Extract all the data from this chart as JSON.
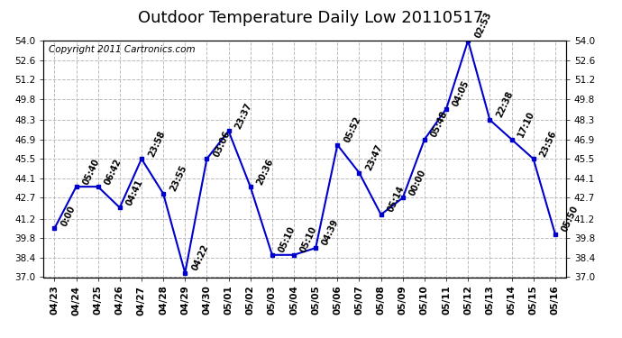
{
  "title": "Outdoor Temperature Daily Low 20110517",
  "copyright": "Copyright 2011 Cartronics.com",
  "x_labels": [
    "04/23",
    "04/24",
    "04/25",
    "04/26",
    "04/27",
    "04/28",
    "04/29",
    "04/30",
    "05/01",
    "05/02",
    "05/03",
    "05/04",
    "05/05",
    "05/06",
    "05/07",
    "05/08",
    "05/09",
    "05/10",
    "05/11",
    "05/12",
    "05/13",
    "05/14",
    "05/15",
    "05/16"
  ],
  "y_values": [
    40.5,
    43.5,
    43.5,
    42.0,
    45.5,
    43.0,
    37.3,
    45.5,
    47.5,
    43.5,
    38.6,
    38.6,
    39.1,
    46.5,
    44.5,
    41.5,
    42.7,
    46.9,
    49.1,
    54.0,
    48.3,
    46.9,
    45.5,
    40.1
  ],
  "annotations": [
    "0:00",
    "05:40",
    "06:42",
    "04:41",
    "23:58",
    "23:55",
    "04:22",
    "03:06",
    "23:37",
    "20:36",
    "05:10",
    "05:10",
    "04:39",
    "05:52",
    "23:47",
    "05:14",
    "00:00",
    "05:48",
    "04:05",
    "02:53",
    "22:38",
    "17:10",
    "23:56",
    "05:50"
  ],
  "line_color": "#0000cc",
  "marker_color": "#0000cc",
  "background_color": "#ffffff",
  "grid_color": "#bbbbbb",
  "ylim": [
    37.0,
    54.0
  ],
  "yticks": [
    37.0,
    38.4,
    39.8,
    41.2,
    42.7,
    44.1,
    45.5,
    46.9,
    48.3,
    49.8,
    51.2,
    52.6,
    54.0
  ],
  "title_fontsize": 13,
  "annotation_fontsize": 7,
  "copyright_fontsize": 7.5,
  "tick_fontsize": 7.5
}
